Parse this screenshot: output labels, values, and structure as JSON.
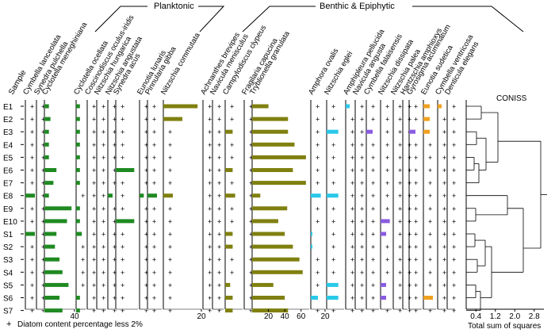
{
  "chart_data": {
    "type": "bar",
    "title": "",
    "group_labels": {
      "planktonic": "Planktonic",
      "benthic": "Benthic & Epiphytic"
    },
    "sample_header": "Sample",
    "samples": [
      "E1",
      "E2",
      "E3",
      "E4",
      "E5",
      "E6",
      "E7",
      "E8",
      "E9",
      "E10",
      "S1",
      "S2",
      "S3",
      "S4",
      "S5",
      "S6",
      "S7"
    ],
    "legend_text": "Diatom content percentage less 2%",
    "legend_symbol": "+",
    "coniss": {
      "title": "CONISS",
      "xlabel": "Total sum of squares",
      "ticks": [
        "0.4",
        "1.2",
        "2.0",
        "2.8"
      ],
      "tick_values": [
        0.4,
        1.2,
        2.0,
        2.8
      ],
      "xlim": [
        0,
        3.2
      ]
    },
    "taxa": [
      {
        "name": "Cymbella lanceolata",
        "color": "#1f8a22",
        "max": 2,
        "values": [
          1,
          1,
          1,
          1,
          1,
          1,
          1,
          2,
          1,
          1,
          2,
          1,
          1,
          1,
          1,
          1,
          1
        ]
      },
      {
        "name": "Synedra pulchella",
        "color": "#1f8a22",
        "max": 2,
        "values": [
          1,
          1,
          1,
          1,
          1,
          1,
          1,
          1,
          1,
          1,
          1,
          1,
          1,
          1,
          1,
          1,
          1
        ]
      },
      {
        "name": "Cyclotella meneghiniana",
        "color": "#1f8a22",
        "max": 40,
        "ticks": [
          "40"
        ],
        "values": [
          6,
          8,
          6,
          6,
          6,
          16,
          12,
          6,
          36,
          30,
          16,
          14,
          20,
          24,
          32,
          20,
          24
        ]
      },
      {
        "name": "Cyclotella ocellata",
        "color": "#1f8a22",
        "max": 5,
        "values": [
          2,
          2,
          2,
          2,
          2,
          2,
          2,
          1,
          2,
          2,
          3,
          1,
          1,
          1,
          1,
          2,
          2
        ]
      },
      {
        "name": "Coscinodiscus oculus-iridis",
        "color": "#1f8a22",
        "max": 4,
        "values": [
          1,
          1,
          1,
          1,
          1,
          1,
          1,
          1,
          1,
          1,
          1,
          1,
          1,
          1,
          1,
          1,
          1
        ]
      },
      {
        "name": "Nitzschia hungarica",
        "color": "#1f8a22",
        "max": 4,
        "values": [
          1,
          1,
          1,
          1,
          1,
          1,
          1,
          1,
          1,
          1,
          1,
          1,
          1,
          1,
          1,
          1,
          1
        ]
      },
      {
        "name": "Nitzschia angustata",
        "color": "#1f8a22",
        "max": 4,
        "values": [
          1,
          1,
          1,
          1,
          1,
          1,
          1,
          3,
          1,
          1,
          1,
          1,
          1,
          1,
          1,
          1,
          1
        ]
      },
      {
        "name": "Synedra acus",
        "color": "#1f8a22",
        "max": 6,
        "values": [
          1,
          1,
          1,
          1,
          1,
          5,
          1,
          1,
          1,
          5,
          1,
          1,
          1,
          1,
          1,
          1,
          1
        ]
      },
      {
        "name": "Eunotia lunaris",
        "color": "#1f8a22",
        "max": 3,
        "values": [
          1,
          1,
          1,
          1,
          1,
          1,
          1,
          2,
          1,
          1,
          1,
          1,
          1,
          1,
          1,
          1,
          1
        ]
      },
      {
        "name": "Pinnularia gibba",
        "color": "#1f8a22",
        "max": 3,
        "values": [
          1,
          1,
          1,
          1,
          1,
          1,
          1,
          2,
          1,
          1,
          1,
          1,
          1,
          1,
          1,
          1,
          1
        ]
      },
      {
        "name": "Nitzschia commutata",
        "color": "#808010",
        "max": 20,
        "ticks": [
          "20"
        ],
        "values": [
          18,
          10,
          1,
          1,
          1,
          1,
          1,
          5,
          1,
          1,
          1,
          1,
          1,
          1,
          1,
          1,
          1
        ]
      },
      {
        "name": "Achnanthes brevipes",
        "color": "#808010",
        "max": 4,
        "values": [
          1,
          1,
          1,
          1,
          1,
          1,
          1,
          1,
          1,
          1,
          1,
          1,
          1,
          1,
          1,
          1,
          1
        ]
      },
      {
        "name": "Navicula menisculus",
        "color": "#808010",
        "max": 4,
        "values": [
          1,
          1,
          1,
          1,
          1,
          1,
          1,
          1,
          1,
          1,
          1,
          1,
          1,
          1,
          1,
          1,
          1
        ]
      },
      {
        "name": "Campylodiscus clypeus",
        "color": "#808010",
        "max": 14,
        "values": [
          1,
          1,
          6,
          1,
          1,
          6,
          1,
          8,
          1,
          1,
          6,
          6,
          1,
          1,
          4,
          6,
          6
        ]
      },
      {
        "name": "Fragilaria capucina",
        "color": "#808010",
        "max": 4,
        "values": [
          1,
          1,
          1,
          1,
          1,
          1,
          1,
          1,
          1,
          1,
          1,
          1,
          1,
          1,
          1,
          1,
          1
        ]
      },
      {
        "name": "Tryblionella granulata",
        "color": "#808010",
        "max": 70,
        "ticks": [
          "20",
          "40",
          "60"
        ],
        "values": [
          20,
          44,
          44,
          52,
          66,
          50,
          66,
          10,
          43,
          32,
          40,
          50,
          58,
          62,
          26,
          40,
          44
        ]
      },
      {
        "name": "Amphora ovalis",
        "color": "#29c8e8",
        "max": 20,
        "ticks": [
          "20"
        ],
        "values": [
          1,
          1,
          1,
          1,
          1,
          1,
          1,
          14,
          1,
          1,
          2,
          2,
          1,
          1,
          1,
          10,
          1
        ]
      },
      {
        "name": "Nitzschia eglei",
        "color": "#29c8e8",
        "max": 12,
        "values": [
          1,
          1,
          8,
          1,
          1,
          1,
          1,
          8,
          1,
          1,
          1,
          1,
          1,
          1,
          8,
          8,
          1
        ]
      },
      {
        "name": "Amphipleura pellucida",
        "color": "#29c8e8",
        "max": 4,
        "values": [
          2,
          1,
          1,
          1,
          1,
          1,
          1,
          1,
          1,
          1,
          1,
          1,
          1,
          1,
          1,
          1,
          1
        ]
      },
      {
        "name": "Navicula angusta",
        "color": "#29c8e8",
        "max": 4,
        "values": [
          1,
          1,
          1,
          1,
          1,
          1,
          1,
          1,
          1,
          1,
          1,
          1,
          1,
          1,
          1,
          1,
          1
        ]
      },
      {
        "name": "Cymbella falaisensis",
        "color": "#8a5ce0",
        "max": 4,
        "values": [
          1,
          1,
          2,
          1,
          1,
          1,
          1,
          1,
          1,
          1,
          1,
          1,
          1,
          1,
          1,
          1,
          1
        ]
      },
      {
        "name": "Nitzschia dissipata",
        "color": "#8a5ce0",
        "max": 12,
        "values": [
          1,
          1,
          1,
          1,
          1,
          1,
          1,
          1,
          1,
          10,
          6,
          1,
          1,
          1,
          6,
          6,
          1
        ]
      },
      {
        "name": "Nitzschia palea",
        "color": "#8a5ce0",
        "max": 4,
        "values": [
          1,
          1,
          1,
          1,
          1,
          1,
          1,
          1,
          1,
          1,
          1,
          1,
          1,
          1,
          1,
          1,
          1
        ]
      },
      {
        "name": "Hantzschia amphioxys",
        "color": "#8a5ce0",
        "max": 4,
        "values": [
          1,
          1,
          1,
          1,
          1,
          1,
          1,
          1,
          1,
          1,
          1,
          1,
          1,
          1,
          1,
          1,
          1
        ]
      },
      {
        "name": "Gyrosigma acuminatum",
        "color": "#8a5ce0",
        "max": 4,
        "values": [
          1,
          1,
          2,
          1,
          1,
          1,
          1,
          1,
          1,
          1,
          1,
          1,
          1,
          1,
          1,
          1,
          1
        ]
      },
      {
        "name": "Eunotia sudetica",
        "color": "#f0a020",
        "max": 4,
        "values": [
          2,
          2,
          2,
          1,
          1,
          1,
          1,
          1,
          1,
          1,
          1,
          1,
          1,
          1,
          1,
          3,
          1
        ]
      },
      {
        "name": "Cymbella ventricosa",
        "color": "#f0a020",
        "max": 4,
        "values": [
          2,
          1,
          1,
          1,
          1,
          1,
          1,
          1,
          1,
          1,
          1,
          1,
          1,
          1,
          1,
          1,
          1
        ]
      },
      {
        "name": "Denticula elegans",
        "color": "#f0a020",
        "max": 4,
        "values": [
          1,
          1,
          1,
          1,
          1,
          1,
          1,
          1,
          1,
          1,
          1,
          1,
          1,
          1,
          1,
          1,
          1
        ]
      }
    ]
  }
}
